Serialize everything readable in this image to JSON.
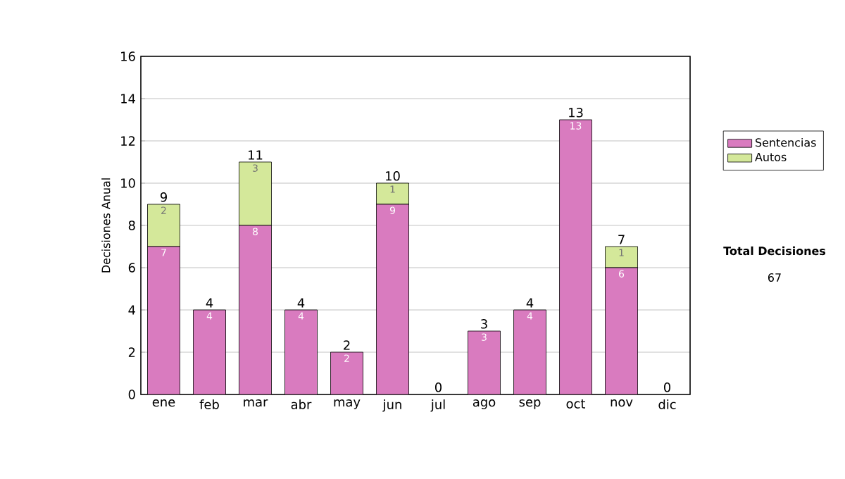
{
  "chart_data": {
    "type": "bar",
    "stacked": true,
    "ylabel": "Decisiones Anual",
    "categories": [
      "ene",
      "feb",
      "mar",
      "abr",
      "may",
      "jun",
      "jul",
      "ago",
      "sep",
      "oct",
      "nov",
      "dic"
    ],
    "series": [
      {
        "name": "Sentencias",
        "color": "#d97bbf",
        "values": [
          7,
          4,
          8,
          4,
          2,
          9,
          0,
          3,
          4,
          13,
          6,
          0
        ],
        "value_labels": [
          "7",
          "4",
          "8",
          "4",
          "2",
          "9",
          null,
          "3",
          "4",
          "13",
          "6",
          null
        ]
      },
      {
        "name": "Autos",
        "color": "#d4e89a",
        "values": [
          2,
          0,
          3,
          0,
          0,
          1,
          0,
          0,
          0,
          0,
          1,
          0
        ],
        "value_labels": [
          "2",
          null,
          "3",
          null,
          null,
          "1",
          null,
          null,
          null,
          null,
          "1",
          null
        ]
      }
    ],
    "totals": [
      "9",
      "4",
      "11",
      "4",
      "2",
      "10",
      "0",
      "3",
      "4",
      "13",
      "7",
      "0"
    ],
    "ylim": [
      0,
      16
    ],
    "yticks": [
      0,
      2,
      4,
      6,
      8,
      10,
      12,
      14,
      16
    ],
    "grid": "y",
    "legend": "right",
    "annotations": [
      "Total Decisiones",
      "67"
    ]
  }
}
